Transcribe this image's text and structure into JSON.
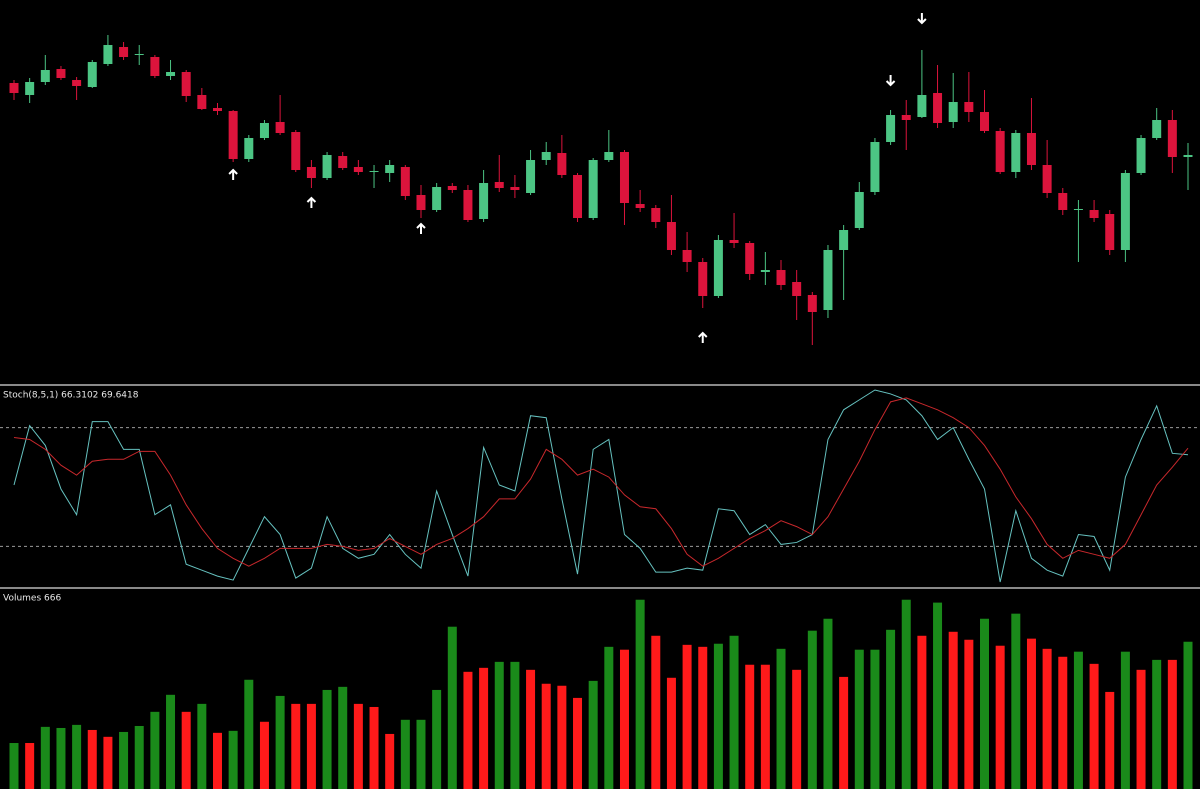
{
  "chart_data": [
    {
      "type": "candlestick",
      "ylim": [
        17,
        400
      ],
      "open": [
        317,
        305,
        318,
        331,
        320,
        313,
        336,
        353,
        345,
        343,
        324,
        328,
        305,
        292,
        289,
        241,
        262,
        278,
        268,
        233,
        222,
        244,
        233,
        228,
        227,
        233,
        205,
        190,
        214,
        210,
        181,
        218,
        213,
        207,
        240,
        247,
        225,
        182,
        240,
        248,
        196,
        192,
        178,
        150,
        138,
        104,
        160,
        157,
        128,
        130,
        118,
        105,
        90,
        150,
        172,
        208,
        258,
        285,
        283,
        307,
        278,
        298,
        288,
        269,
        228,
        267,
        235,
        207,
        190,
        190,
        186,
        150,
        227,
        262,
        280,
        243
      ],
      "high": [
        320,
        322,
        345,
        334,
        323,
        340,
        365,
        358,
        355,
        345,
        340,
        330,
        312,
        297,
        290,
        265,
        280,
        305,
        270,
        240,
        248,
        248,
        240,
        235,
        240,
        235,
        215,
        217,
        217,
        215,
        230,
        245,
        225,
        250,
        258,
        265,
        227,
        242,
        270,
        250,
        210,
        195,
        205,
        168,
        142,
        165,
        187,
        159,
        148,
        140,
        130,
        108,
        155,
        175,
        218,
        262,
        290,
        300,
        350,
        335,
        327,
        328,
        310,
        272,
        270,
        302,
        260,
        212,
        200,
        200,
        190,
        230,
        265,
        292,
        290,
        257
      ],
      "low": [
        300,
        297,
        315,
        320,
        300,
        312,
        334,
        340,
        335,
        322,
        320,
        298,
        290,
        285,
        238,
        238,
        260,
        265,
        228,
        212,
        220,
        230,
        225,
        212,
        218,
        200,
        182,
        188,
        207,
        178,
        178,
        208,
        202,
        205,
        235,
        222,
        178,
        180,
        238,
        175,
        188,
        172,
        145,
        128,
        92,
        102,
        152,
        120,
        115,
        110,
        80,
        55,
        82,
        100,
        170,
        205,
        255,
        250,
        282,
        272,
        272,
        278,
        267,
        226,
        222,
        230,
        202,
        185,
        138,
        178,
        145,
        138,
        225,
        260,
        227,
        210
      ],
      "close": [
        307,
        318,
        330,
        322,
        314,
        338,
        355,
        343,
        346,
        324,
        328,
        304,
        291,
        289,
        241,
        262,
        277,
        267,
        230,
        222,
        245,
        232,
        228,
        229,
        235,
        204,
        190,
        213,
        210,
        180,
        217,
        212,
        210,
        240,
        248,
        225,
        182,
        240,
        248,
        197,
        192,
        178,
        150,
        138,
        104,
        160,
        157,
        126,
        130,
        115,
        104,
        88,
        150,
        170,
        208,
        258,
        285,
        280,
        305,
        277,
        298,
        288,
        269,
        228,
        267,
        235,
        207,
        190,
        191,
        182,
        150,
        227,
        262,
        280,
        243,
        245
      ],
      "up_color": "#4cc584",
      "down_color": "#dc143c",
      "signal_color": "#ffffff",
      "signals": [
        {
          "index": 14,
          "direction": "up",
          "value": 225
        },
        {
          "index": 19,
          "direction": "up",
          "value": 197
        },
        {
          "index": 26,
          "direction": "up",
          "value": 171
        },
        {
          "index": 44,
          "direction": "up",
          "value": 62
        },
        {
          "index": 56,
          "direction": "down",
          "value": 320
        },
        {
          "index": 58,
          "direction": "down",
          "value": 382
        }
      ]
    },
    {
      "type": "line",
      "title": "Stoch(8,5,1) 66.3102 69.6418",
      "ylim": [
        0,
        100
      ],
      "levels": [
        20,
        80
      ],
      "level_color": "#9a9a9a",
      "series": [
        {
          "color": "#66c2c0",
          "values": [
            51,
            81,
            71,
            49,
            36,
            83,
            83,
            69,
            69,
            36,
            41,
            11,
            8,
            5,
            3,
            19,
            35,
            26,
            4,
            9,
            35,
            19,
            14,
            16,
            26,
            16,
            9,
            48,
            26,
            5,
            70,
            51,
            48,
            86,
            85,
            44,
            6,
            69,
            74,
            26,
            19,
            7,
            7,
            9,
            8,
            39,
            38,
            26,
            31,
            21,
            22,
            26,
            74,
            89,
            94,
            99,
            97,
            94,
            86,
            74,
            80,
            64,
            49,
            2,
            38,
            14,
            8,
            5,
            26,
            25,
            8,
            55,
            74,
            91,
            67,
            66.3
          ]
        },
        {
          "color": "#c8282c",
          "values": [
            75,
            74,
            69,
            61,
            56,
            63,
            64,
            64,
            68,
            68,
            56,
            41,
            29,
            19,
            14,
            10,
            14,
            19,
            19,
            19,
            21,
            20,
            18,
            19,
            24,
            20,
            16,
            21,
            24,
            29,
            35,
            44,
            44,
            54,
            69,
            64,
            56,
            59,
            55,
            46,
            40,
            39,
            29,
            16,
            10,
            14,
            19,
            24,
            28,
            33,
            30,
            26,
            35,
            49,
            63,
            79,
            93,
            95,
            92,
            89,
            85,
            80,
            71,
            59,
            45,
            34,
            21,
            14,
            18,
            16,
            14,
            21,
            36,
            51,
            60,
            69.6
          ]
        }
      ]
    },
    {
      "type": "bar",
      "title": "Volumes 666",
      "ylim": [
        0,
        900
      ],
      "up_color": "#1a8a1a",
      "down_color": "#ff1a1a",
      "values": [
        208,
        208,
        281,
        276,
        290,
        267,
        236,
        258,
        285,
        349,
        426,
        349,
        385,
        254,
        263,
        494,
        304,
        421,
        385,
        385,
        448,
        462,
        385,
        371,
        249,
        313,
        313,
        448,
        734,
        530,
        548,
        575,
        575,
        539,
        476,
        467,
        412,
        489,
        643,
        630,
        856,
        693,
        503,
        652,
        643,
        657,
        693,
        562,
        562,
        634,
        539,
        716,
        770,
        507,
        630,
        630,
        720,
        856,
        693,
        843,
        711,
        675,
        770,
        648,
        793,
        680,
        634,
        598,
        621,
        566,
        439,
        621,
        539,
        584,
        584,
        666
      ],
      "directions": [
        "up",
        "down",
        "up",
        "up",
        "up",
        "down",
        "down",
        "up",
        "up",
        "up",
        "up",
        "down",
        "up",
        "down",
        "up",
        "up",
        "down",
        "up",
        "down",
        "down",
        "up",
        "up",
        "down",
        "down",
        "down",
        "up",
        "up",
        "up",
        "up",
        "down",
        "down",
        "up",
        "up",
        "down",
        "down",
        "down",
        "down",
        "up",
        "up",
        "down",
        "up",
        "down",
        "down",
        "down",
        "down",
        "up",
        "up",
        "down",
        "down",
        "up",
        "down",
        "up",
        "up",
        "down",
        "up",
        "up",
        "up",
        "up",
        "down",
        "up",
        "down",
        "down",
        "up",
        "down",
        "up",
        "down",
        "down",
        "down",
        "up",
        "down",
        "down",
        "up",
        "down",
        "up",
        "down",
        "up"
      ]
    }
  ]
}
